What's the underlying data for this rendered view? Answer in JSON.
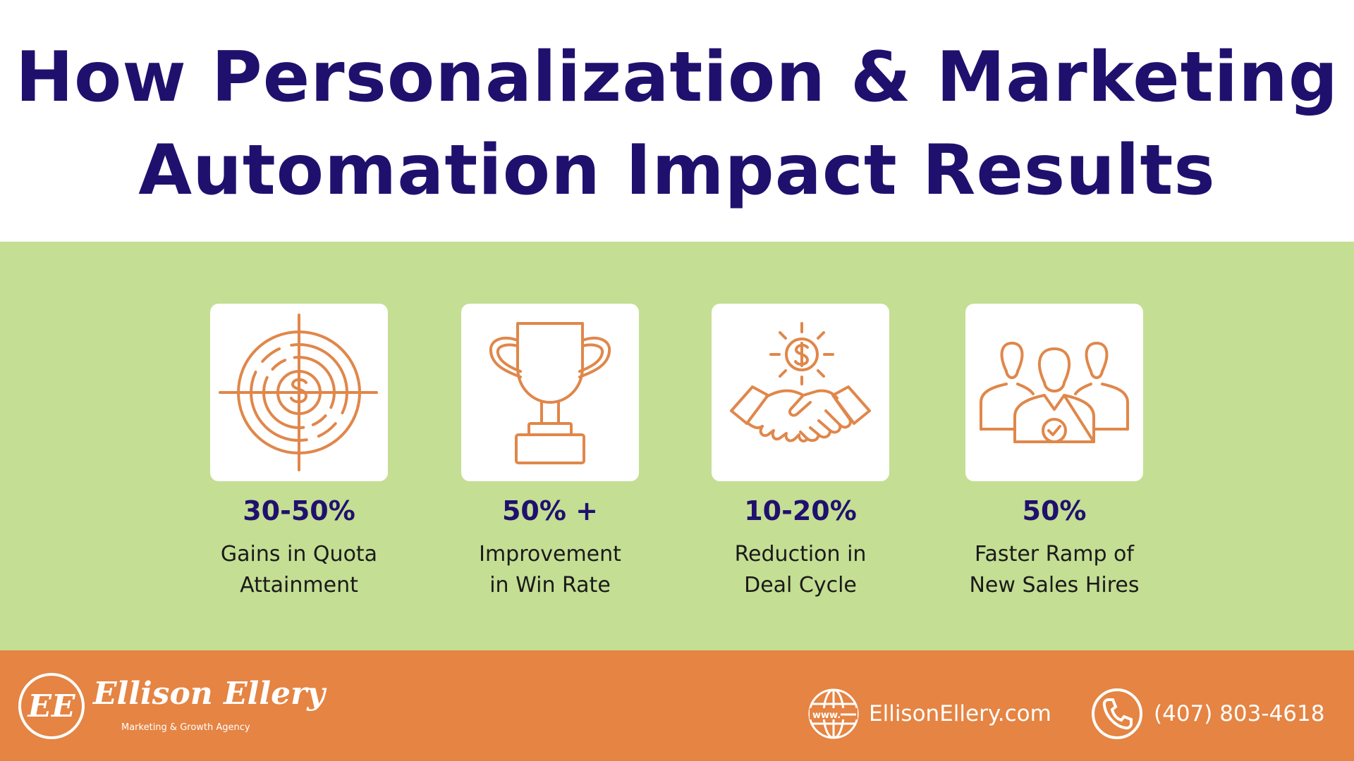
{
  "header": {
    "title_line1": "How Personalization & Marketing",
    "title_line2": "Automation Impact Results"
  },
  "stats": [
    {
      "icon": "target-dollar-icon",
      "value": "30-50%",
      "label_line1": "Gains in Quota",
      "label_line2": "Attainment"
    },
    {
      "icon": "trophy-icon",
      "value": "50% +",
      "label_line1": "Improvement",
      "label_line2": "in Win Rate"
    },
    {
      "icon": "handshake-dollar-icon",
      "value": "10-20%",
      "label_line1": "Reduction in",
      "label_line2": "Deal Cycle"
    },
    {
      "icon": "team-check-icon",
      "value": "50%",
      "label_line1": "Faster Ramp of",
      "label_line2": "New Sales Hires"
    }
  ],
  "footer": {
    "logo_monogram": "EE",
    "logo_name": "Ellison Ellery",
    "logo_tagline": "Marketing & Growth Agency",
    "website_icon": "globe-www-icon",
    "website": "EllisonEllery.com",
    "phone_icon": "phone-icon",
    "phone": "(407) 803-4618"
  },
  "colors": {
    "title": "#20106e",
    "band": "#c4de93",
    "icon_stroke": "#e0874a",
    "footer": "#e58443"
  }
}
